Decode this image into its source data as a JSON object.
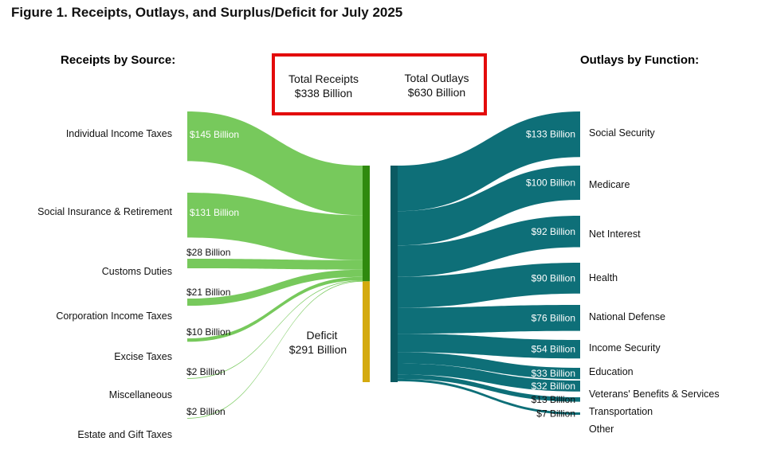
{
  "title": "Figure 1. Receipts, Outlays, and Surplus/Deficit for July 2025",
  "receipts_heading": "Receipts by Source:",
  "outlays_heading": "Outlays by Function:",
  "totals": {
    "receipts_label": "Total Receipts",
    "receipts_value": "$338 Billion",
    "outlays_label": "Total Outlays",
    "outlays_value": "$630 Billion"
  },
  "deficit": {
    "label": "Deficit",
    "value": "$291 Billion"
  },
  "colors": {
    "receipts_flow": "#77c95c",
    "receipts_bar": "#2f8a0e",
    "deficit_bar": "#d4aa0f",
    "outlays_flow": "#0e6f78",
    "outlays_bar": "#0b5a62",
    "box_border": "#e30b0b",
    "deficit_flow": "#e6d89a"
  },
  "chart_data": {
    "type": "sankey",
    "units": "Billion $",
    "receipts": [
      {
        "name": "Individual Income Taxes",
        "value": 145,
        "label": "$145 Billion"
      },
      {
        "name": "Social Insurance & Retirement",
        "value": 131,
        "label": "$131 Billion"
      },
      {
        "name": "Customs Duties",
        "value": 28,
        "label": "$28 Billion"
      },
      {
        "name": "Corporation Income Taxes",
        "value": 21,
        "label": "$21 Billion"
      },
      {
        "name": "Excise Taxes",
        "value": 10,
        "label": "$10 Billion"
      },
      {
        "name": "Miscellaneous",
        "value": 2,
        "label": "$2 Billion"
      },
      {
        "name": "Estate and Gift Taxes",
        "value": 2,
        "label": "$2 Billion"
      }
    ],
    "outlays": [
      {
        "name": "Social Security",
        "value": 133,
        "label": "$133 Billion"
      },
      {
        "name": "Medicare",
        "value": 100,
        "label": "$100 Billion"
      },
      {
        "name": "Net Interest",
        "value": 92,
        "label": "$92 Billion"
      },
      {
        "name": "Health",
        "value": 90,
        "label": "$90 Billion"
      },
      {
        "name": "National Defense",
        "value": 76,
        "label": "$76 Billion"
      },
      {
        "name": "Income Security",
        "value": 54,
        "label": "$54 Billion"
      },
      {
        "name": "Education",
        "value": 33,
        "label": "$33 Billion"
      },
      {
        "name": "Veterans' Benefits & Services",
        "value": 32,
        "label": "$32 Billion"
      },
      {
        "name": "Transportation",
        "value": 13,
        "label": "$13 Billion"
      },
      {
        "name": "Other",
        "value": 7,
        "label": "$7 Billion"
      }
    ],
    "total_receipts": 338,
    "total_outlays": 630,
    "deficit": 291
  }
}
